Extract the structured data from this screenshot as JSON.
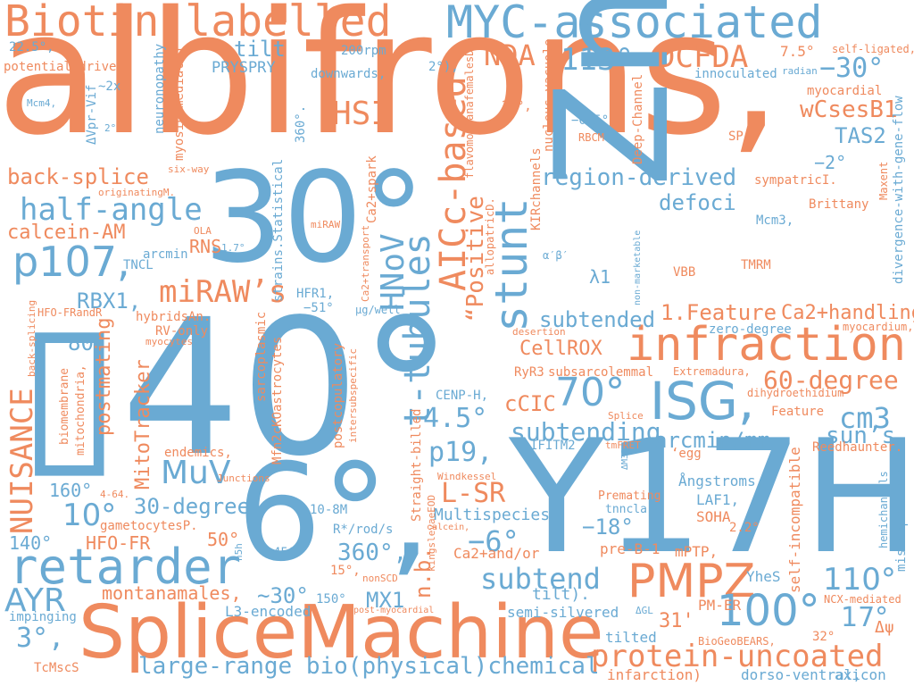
{
  "colors": {
    "blue": "#6aaad3",
    "orange": "#ef8a5e",
    "background": "#ffffff"
  },
  "words": {
    "albifrons": "albifrons,",
    "znse": "ZnSe",
    "deg40": "▯40°",
    "y17h": "Y17H",
    "deg30": "30°",
    "deg6": "6°,",
    "splicemachine": "SpliceMachine",
    "myc": "MYC-associated",
    "biotin": "Biotin-labelled",
    "infraction": "infraction",
    "retarder": "retarder",
    "isg": "ISG,",
    "pmpz": "PMPZ",
    "deg100": "100°",
    "protein_uncoated": "protein-uncoated",
    "stunt": "stunt",
    "hnov": "HNoV",
    "aicc": "AICc-based",
    "t_tubules": "t-tubules",
    "positive": "“Positive",
    "p107": "p107,",
    "half_angle": "half-angle",
    "miraw": "miRAW’s",
    "nuisance": "NUISANCE",
    "large_range": "large-range bio(physical)chemical",
    "deg70": "70°",
    "deg113": "113°",
    "dcfda": "DCFDA",
    "nda": "NDA",
    "hsi": "HSI",
    "neg30": "−30°",
    "wcsesb1": "wCsesB1",
    "tas2": "TAS2",
    "region_derived": "region-derived",
    "defoci": "defoci",
    "subtended": "subtended",
    "feature1": "1.Feature",
    "ca2handling": "Ca2+handling",
    "deg60": "60-degree",
    "cm3": "cm3",
    "sun": "sun’s",
    "subtending": "subtending",
    "arcmin_mm": "arcmin/mm",
    "cellrox": "CellROX",
    "ccic": "cCIC",
    "deg4_5": "4.5°",
    "p19": "p19,",
    "lsr": "L-SR",
    "neg6": "−6°",
    "subtend": "subtend",
    "muv": "MuV",
    "deg10": "10°",
    "deg30degree": "30-degree",
    "ayr": "AYR",
    "deg110": "110°",
    "deg17": "17°",
    "tilt_top": "tilt",
    "back_splice": "back-splice",
    "calcein_am": "calcein-AM",
    "rbx1": "RBX1,",
    "prsypry": "PRYSPRY",
    "deg80": "80°",
    "postmating": "postmating",
    "mitotracker": "MitoTracker",
    "deg160": "160°",
    "deg140": "140°",
    "hfo_fr": "HFO-FR",
    "deg50": "50°",
    "montanamales": "montanamales,",
    "approx30": "~30°",
    "mx1": "MX1",
    "deg360": "360°,",
    "deg3": "3°,",
    "neg18": "−18°",
    "neg2": "−2°",
    "lambda1": "λ1",
    "rns": "RNS",
    "deg31": "31'",
    "nb": "n.b.",
    "ca2andor": "Ca2+and/or",
    "tilt_bottom": "tilt).",
    "multispecies": "Multispecies",
    "l3encoded": "L3-encoded",
    "semisilvered": "semi-silvered",
    "tilted": "tilted",
    "infarction_paren": "infarction)",
    "dorso_ventral": "dorso-ventral,",
    "axicon": "axicon",
    "tcmscs": "TcMscS",
    "impinging": "impinging",
    "ngstroms": "Ångstroms.",
    "laf1": "LAF1,",
    "soha": "SOHA",
    "premating": "Premating",
    "tnncla": "tnncla,",
    "preb1": "pre-B-1",
    "mptp": "mPTP,",
    "pmer": "PM-ER",
    "yhes": "YheS",
    "self_incompatible": "self-incompatible",
    "hemichannels": "hemichannels",
    "mis_expression": "mis-expression",
    "ncx_mediated": "NCX-mediated",
    "biogeobears": "BioGeoBEARS,",
    "deg32": "32°",
    "delta_psi": "Δψ",
    "deg2_2": "2.2°",
    "reedhaunter": "Reedhaunter.",
    "egg": "‘egg",
    "feature": "Feature",
    "dihydroethidium": "dihydroethidium",
    "extremadura": "Extremadura,",
    "myocardium": "myocardium,",
    "zero_degree": "zero-degree",
    "tmrm": "TMRM",
    "vbb": "VBB",
    "mcm3": "Mcm3,",
    "brittany": "Brittany",
    "maxent": "Maxent",
    "sympatric": "sympatricI.",
    "sps": "SP’s",
    "myocardial": "myocardial",
    "divergence": "divergence-with-gene-flow",
    "deg7_5": "7.5°",
    "self_ligated": "self-ligated,",
    "radian": "radian",
    "innoculated": "innoculated",
    "deep_channel": "Deep-Channel",
    "rbcm": "RBCM",
    "neg0_5": "−0.5°",
    "flavomontana": "flavomontanafemalesD.",
    "nucleus_vacuole": "nucleus-vacuole",
    "kirchannels": "KIRchannels",
    "allopatric": "allopatricD.",
    "alpha_beta": "α′β′",
    "non_marketable": "non-marketable",
    "deg24": "24°,",
    "deg2b": "2°),",
    "downwards": "downwards,",
    "rpm200": "200rpm",
    "deg22_5": "22.5°,",
    "potential_driven": "potential-driven",
    "mcm4": "Mcm4,",
    "approx2x": "~2x",
    "delta_vpr": "ΔVpr-Vif",
    "deg2c": "2°",
    "neuronopathy": "neuronopathy",
    "myosin_mediated": "myosin-mediated",
    "six_way": "six-way",
    "originating": "originatingM.",
    "deg360b": "360°.",
    "strains_statistical": "strains.Statistical",
    "ca2spark": "Ca2+spark",
    "miraw2": "miRAW",
    "ola": "OLA",
    "deg1_7": "1.7°",
    "arcmin": "arcmin",
    "tncl": "TNCL",
    "hfr1": "HFR1,",
    "neg51": "−51°",
    "ugwell": "μg/well",
    "ca2transport": "Ca2+transport",
    "hfo_frandr": "HFO-FRandR",
    "hybrids": "hybridsAn.",
    "rv_only": "RV-only",
    "myocytes": "myocytes",
    "back_splicing": "back-splicing",
    "biomembrane": "biomembrane",
    "mitochondria": "mitochondria,",
    "sarcoplasmic": "sarcoplasmic",
    "strains_mfn": "Mfn2cKOastrocytes",
    "postcopulatory": "postcopulatory",
    "intersubspecific": "intersubspecific",
    "straight_billed": "Straight-billed",
    "kingsleyae": "kingsleyaeEOD",
    "cenph": "CENP-H,",
    "desertion": "desertion",
    "ryr3": "RyR3",
    "subsarcolemmal": "subsarcolemmal",
    "ifitm2": "IFITM2",
    "tmfret": "tmFRET",
    "splice": "Splice",
    "windkessel": "Windkessel",
    "endemics": "endemics,",
    "deg4_64": "4-64.",
    "junctions": "Junctions",
    "gametocytes": "gametocytesP.",
    "m10_8": "10-8M",
    "rods": "R*/rod/s",
    "calcein": "calcein,",
    "deg15": "15°,",
    "nonscd": "nonSCD",
    "deg45": "45°",
    "n5h": "n5h",
    "deg150": "150°",
    "post_myocardial": "post-myocardial",
    "delta_m32": "ΔM32",
    "delta_gl": "ΔGL"
  }
}
